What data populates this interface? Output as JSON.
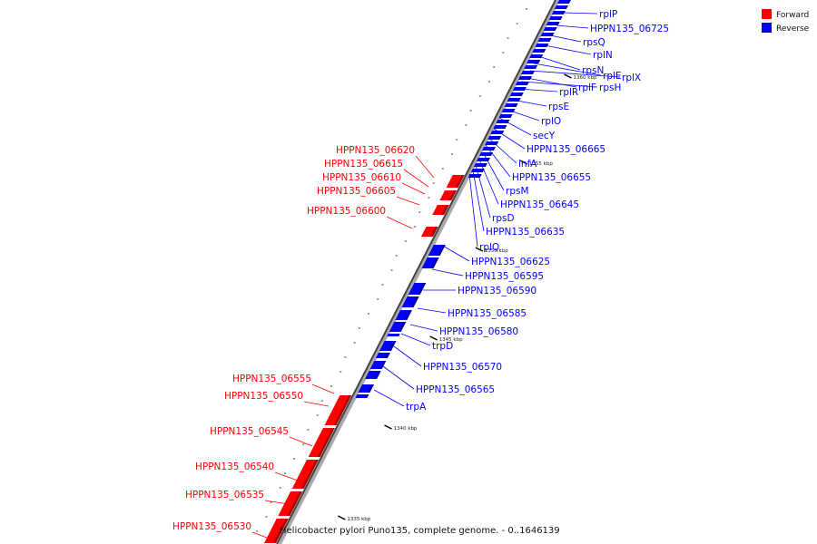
{
  "legend": {
    "items": [
      {
        "label": "Forward",
        "color": "#ff0000"
      },
      {
        "label": "Reverse",
        "color": "#0000ff"
      }
    ]
  },
  "caption": "Helicobacter pylori Puno135, complete genome. - 0..1646139",
  "ticks": [
    "1335 kbp",
    "1340 kbp",
    "1345 kbp",
    "1350 kbp",
    "1355 kbp",
    "1360 kbp"
  ],
  "colors": {
    "forward": "#ff0000",
    "reverse": "#0000ff",
    "backbone": "#888888"
  },
  "forward_genes": [
    "HPPN135_06620",
    "HPPN135_06615",
    "HPPN135_06610",
    "HPPN135_06605",
    "HPPN135_06600",
    "HPPN135_06555",
    "HPPN135_06550",
    "HPPN135_06545",
    "HPPN135_06540",
    "HPPN135_06535",
    "HPPN135_06530"
  ],
  "reverse_genes": [
    "rplP",
    "HPPN135_06725",
    "rpsQ",
    "rplN",
    "rpsN",
    "rplE",
    "rplX",
    "rplF",
    "rpsH",
    "rplR",
    "rpsE",
    "rplO",
    "secY",
    "HPPN135_06665",
    "infA",
    "HPPN135_06655",
    "rpsM",
    "HPPN135_06645",
    "rpsD",
    "HPPN135_06635",
    "rplQ",
    "HPPN135_06625",
    "HPPN135_06595",
    "HPPN135_06590",
    "HPPN135_06585",
    "HPPN135_06580",
    "trpD",
    "HPPN135_06570",
    "HPPN135_06565",
    "trpA"
  ]
}
